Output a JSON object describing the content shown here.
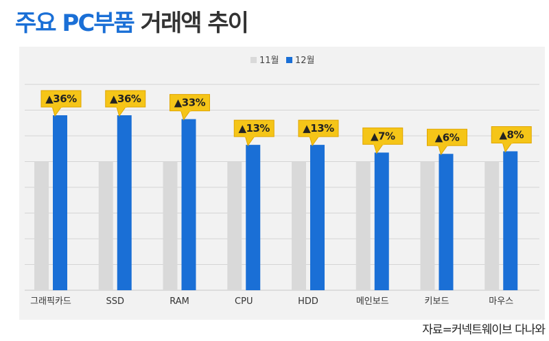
{
  "title": {
    "highlight": "주요 PC부품",
    "rest": " 거래액 추이"
  },
  "source": "자료=커넥트웨이브 다나와",
  "colors": {
    "nov": "#d9d9d9",
    "dec": "#1a6fd6",
    "callout": "#f5c518",
    "callout_border": "#e0a500",
    "title_accent": "#1a6fd6"
  },
  "chart_data": {
    "type": "bar",
    "categories": [
      "그래픽카드",
      "SSD",
      "RAM",
      "CPU",
      "HDD",
      "메인보드",
      "키보드",
      "마우스"
    ],
    "series": [
      {
        "name": "11월",
        "values": [
          100,
          100,
          100,
          100,
          100,
          100,
          100,
          100
        ]
      },
      {
        "name": "12월",
        "values": [
          136,
          136,
          133,
          113,
          113,
          107,
          106,
          108
        ]
      }
    ],
    "annotations": [
      "▲36%",
      "▲36%",
      "▲33%",
      "▲13%",
      "▲13%",
      "▲7%",
      "▲6%",
      "▲8%"
    ],
    "ylim": [
      0,
      160
    ],
    "grid": true,
    "legend": "top-center"
  }
}
